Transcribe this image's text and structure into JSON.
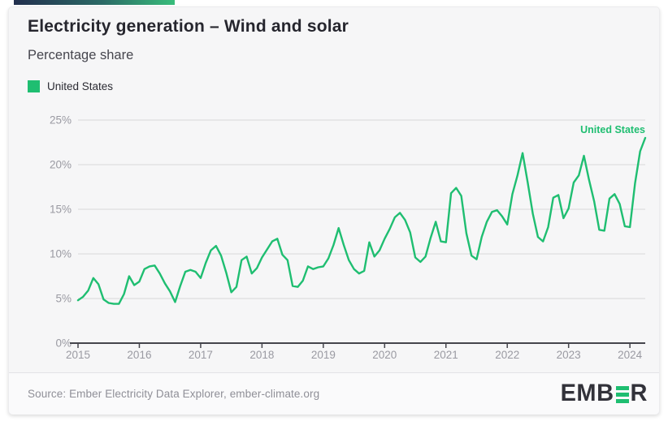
{
  "header": {
    "title": "Electricity generation – Wind and solar",
    "subtitle": "Percentage share"
  },
  "legend": {
    "items": [
      {
        "label": "United States",
        "color": "#1fbe71"
      }
    ]
  },
  "chart_data": {
    "type": "line",
    "title": "Electricity generation – Wind and solar",
    "ylabel": "Percentage share",
    "xlabel": "",
    "unit": "%",
    "grid": true,
    "legend_position": "top-left",
    "end_label": "United States",
    "ylim": [
      0,
      25
    ],
    "y_tick_values": [
      0,
      5,
      10,
      15,
      20,
      25
    ],
    "y_tick_labels": [
      "0%",
      "5%",
      "10%",
      "15%",
      "20%",
      "25%"
    ],
    "x_tick_labels": [
      "2015",
      "2016",
      "2017",
      "2018",
      "2019",
      "2020",
      "2021",
      "2022",
      "2023",
      "2024"
    ],
    "x_start_month": "2015-01",
    "x_end_month": "2024-04",
    "series": [
      {
        "name": "United States",
        "color": "#1fbe71",
        "values": [
          4.8,
          5.2,
          5.9,
          7.3,
          6.6,
          4.9,
          4.5,
          4.4,
          4.4,
          5.5,
          7.5,
          6.5,
          6.9,
          8.3,
          8.6,
          8.7,
          7.8,
          6.7,
          5.8,
          4.6,
          6.4,
          8.0,
          8.2,
          8.0,
          7.3,
          9.0,
          10.4,
          10.9,
          9.8,
          7.9,
          5.7,
          6.3,
          9.3,
          9.7,
          7.8,
          8.4,
          9.6,
          10.5,
          11.4,
          11.7,
          9.9,
          9.3,
          6.4,
          6.3,
          7.0,
          8.6,
          8.3,
          8.5,
          8.6,
          9.5,
          11.0,
          12.9,
          11.0,
          9.3,
          8.3,
          7.8,
          8.1,
          11.3,
          9.7,
          10.4,
          11.7,
          12.8,
          14.1,
          14.6,
          13.8,
          12.4,
          9.6,
          9.1,
          9.7,
          11.8,
          13.6,
          11.4,
          11.3,
          16.8,
          17.4,
          16.5,
          12.3,
          9.8,
          9.4,
          11.9,
          13.6,
          14.7,
          14.9,
          14.2,
          13.3,
          16.7,
          18.8,
          21.3,
          18.0,
          14.5,
          11.9,
          11.4,
          13.0,
          16.3,
          16.6,
          14.0,
          15.1,
          18.0,
          18.8,
          21.0,
          18.3,
          15.9,
          12.7,
          12.6,
          16.2,
          16.7,
          15.6,
          13.1,
          13.0,
          17.9,
          21.5,
          23.0
        ]
      }
    ]
  },
  "footer": {
    "source": "Source: Ember Electricity Data Explorer, ember-climate.org",
    "logo": {
      "text": "EMBER",
      "pre": "EMB",
      "post": "R"
    }
  },
  "colors": {
    "accent_green": "#1fbe71",
    "gradient_start": "#222f4e",
    "gradient_end": "#38bd7b",
    "grid_line": "#d8d8da",
    "axis_line": "#45454c",
    "tick_text": "#9a9aa2",
    "card_bg": "#f6f6f7"
  }
}
